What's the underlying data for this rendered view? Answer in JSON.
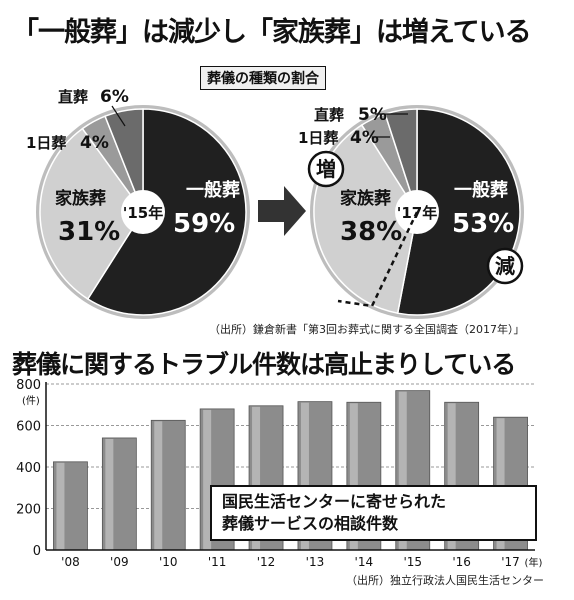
{
  "headline": "「一般葬」は減少し「家族葬」は増えている",
  "pie_subtitle": "葬儀の種類の割合",
  "pie_source": "（出所）鎌倉新書「第3回お葬式に関する全国調査（2017年）」",
  "badges": {
    "increase": "増",
    "decrease": "減"
  },
  "bar_headline": "葬儀に関するトラブル件数は高止まりしている",
  "bar_note": [
    "国民生活センターに寄せられた",
    "葬儀サービスの相談件数"
  ],
  "bar_source": "（出所）独立行政法人国民生活センター",
  "colors": {
    "ippan": "#202020",
    "kazoku": "#d0d0d0",
    "ichinichi": "#9a9a9a",
    "chokusou": "#6b6b6b",
    "bar": "#8c8c8c"
  },
  "chart_data": [
    {
      "type": "pie",
      "center_label": "'15年",
      "slices": [
        {
          "name": "一般葬",
          "value_label": "59%",
          "value": 59
        },
        {
          "name": "家族葬",
          "value_label": "31%",
          "value": 31
        },
        {
          "name": "1日葬",
          "value_label": "4%",
          "value": 4
        },
        {
          "name": "直葬",
          "value_label": "6%",
          "value": 6
        }
      ]
    },
    {
      "type": "pie",
      "center_label": "'17年",
      "slices": [
        {
          "name": "一般葬",
          "value_label": "53%",
          "value": 53
        },
        {
          "name": "家族葬",
          "value_label": "38%",
          "value": 38
        },
        {
          "name": "1日葬",
          "value_label": "4%",
          "value": 4
        },
        {
          "name": "直葬",
          "value_label": "5%",
          "value": 5
        }
      ]
    },
    {
      "type": "bar",
      "categories": [
        "'08",
        "'09",
        "'10",
        "'11",
        "'12",
        "'13",
        "'14",
        "'15",
        "'16",
        "'17"
      ],
      "x_suffix": "(年)",
      "values": [
        425,
        540,
        625,
        680,
        695,
        715,
        712,
        768,
        712,
        640
      ],
      "ylim": [
        0,
        800
      ],
      "yticks": [
        0,
        200,
        400,
        600,
        800
      ],
      "yunit": "(件)",
      "grid": true
    }
  ]
}
